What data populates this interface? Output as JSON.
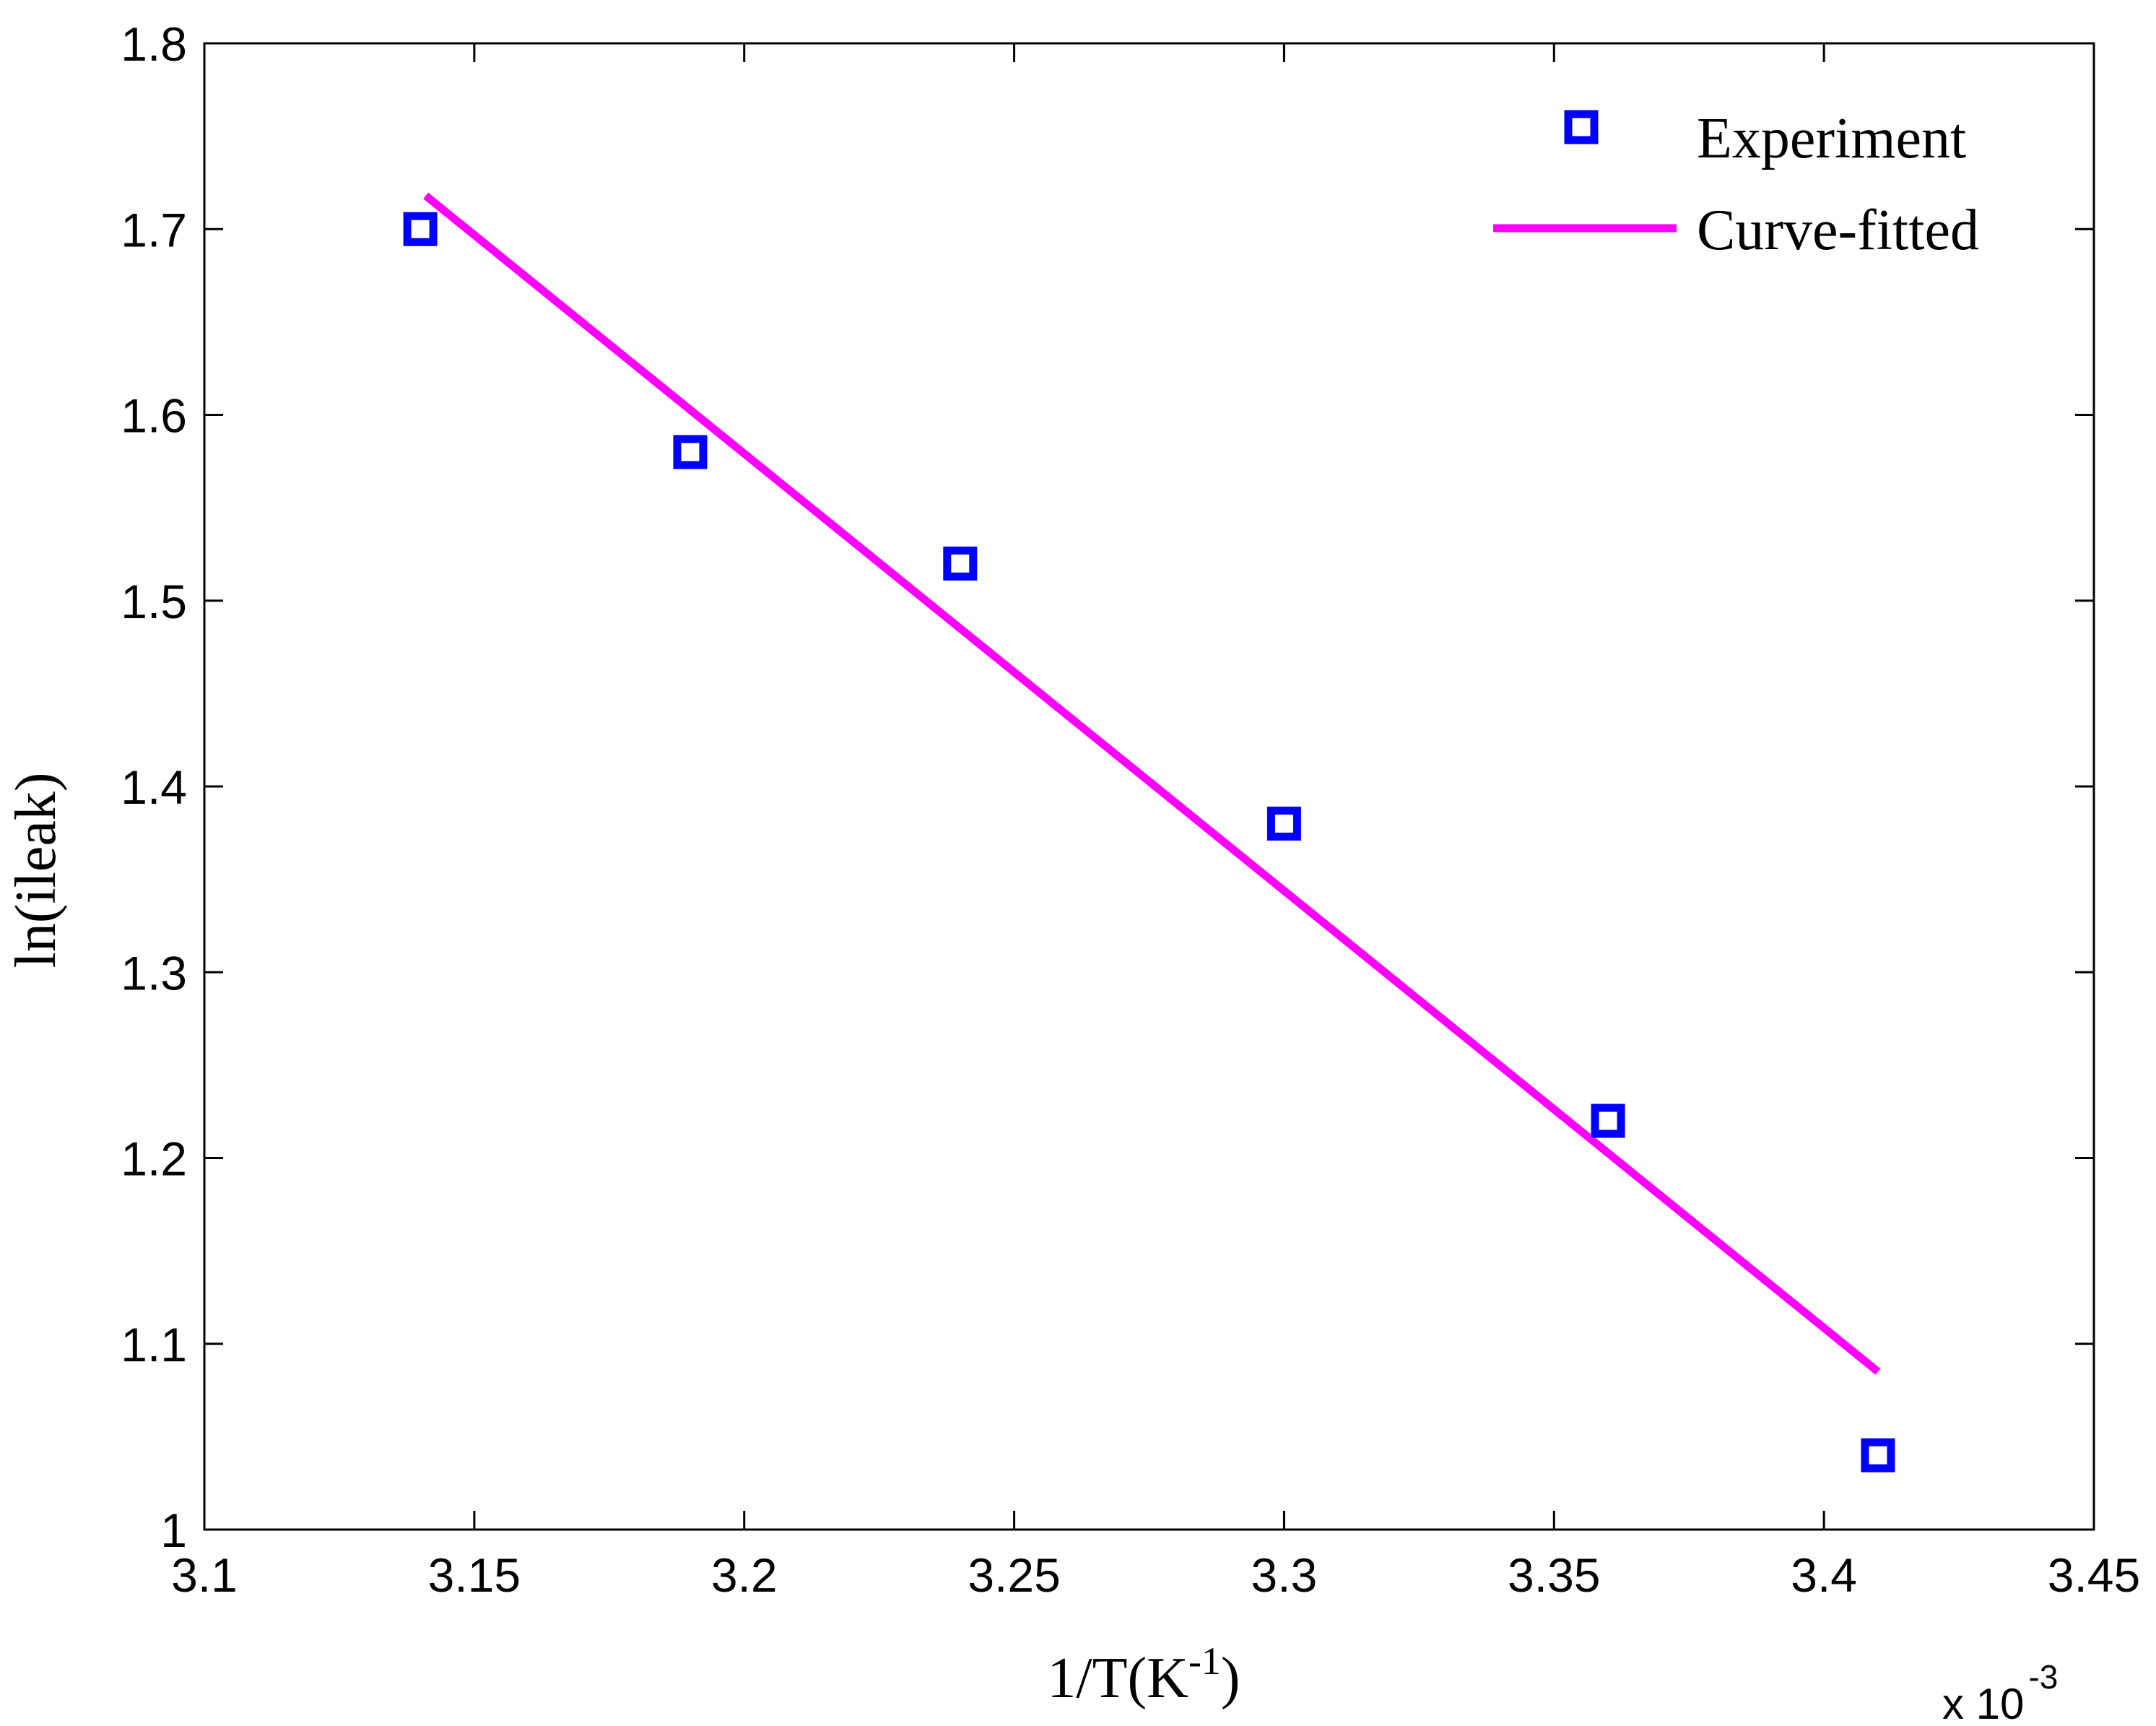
{
  "chart_data": {
    "type": "scatter",
    "title": "",
    "xlabel": {
      "base": "1/T(K",
      "sup": "-1",
      "close": ")"
    },
    "ylabel": "ln(ileak)",
    "x_multiplier": {
      "base": "x 10",
      "exponent": "-3"
    },
    "xlim": [
      3.1,
      3.45
    ],
    "ylim": [
      1.0,
      1.8
    ],
    "xticks": [
      3.1,
      3.15,
      3.2,
      3.25,
      3.3,
      3.35,
      3.4,
      3.45
    ],
    "xtick_labels": [
      "3.1",
      "3.15",
      "3.2",
      "3.25",
      "3.3",
      "3.35",
      "3.4",
      "3.45"
    ],
    "yticks": [
      1.0,
      1.1,
      1.2,
      1.3,
      1.4,
      1.5,
      1.6,
      1.7,
      1.8
    ],
    "ytick_labels": [
      "1",
      "1.1",
      "1.2",
      "1.3",
      "1.4",
      "1.5",
      "1.6",
      "1.7",
      "1.8"
    ],
    "grid": false,
    "legend_position": "top-right",
    "series": [
      {
        "name": "Experiment",
        "kind": "markers",
        "marker": "square",
        "color": "#0000ff",
        "x": [
          3.14,
          3.19,
          3.24,
          3.3,
          3.36,
          3.41
        ],
        "y": [
          1.7,
          1.58,
          1.52,
          1.38,
          1.22,
          1.04
        ]
      },
      {
        "name": "Curve-fitted",
        "kind": "line",
        "color": "#ff00ff",
        "x": [
          3.141,
          3.41
        ],
        "y": [
          1.718,
          1.085
        ]
      }
    ]
  }
}
